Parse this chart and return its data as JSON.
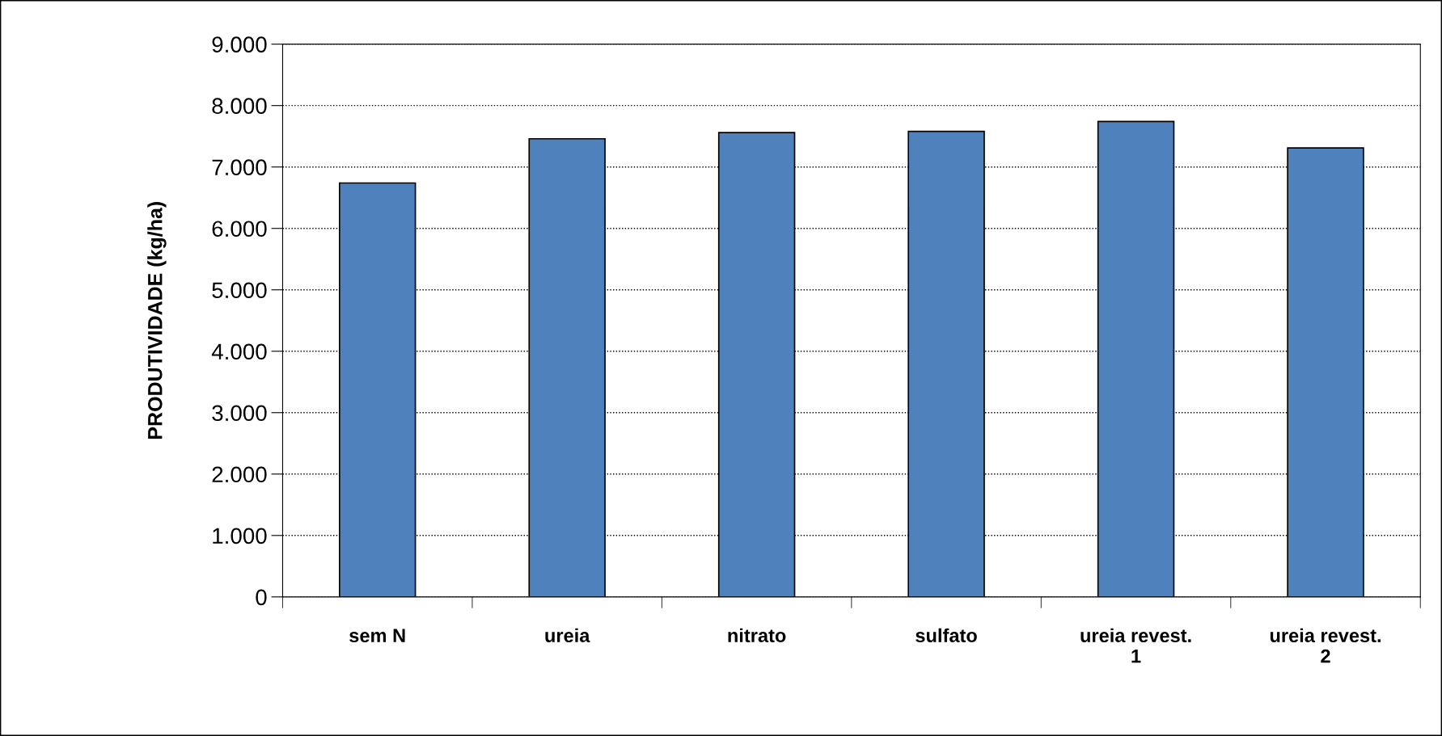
{
  "chart_data": {
    "type": "bar",
    "ylabel": "PRODUTIVIDADE (kg/ha)",
    "categories": [
      "sem N",
      "ureia",
      "nitrato",
      "sulfato",
      "ureia revest.\n1",
      "ureia revest.\n2"
    ],
    "values": [
      6740,
      7460,
      7560,
      7580,
      7740,
      7310
    ],
    "color": "#4f81bd",
    "ylim": [
      0,
      9000
    ],
    "yticks": [
      0,
      {
        "value": 1000,
        "label": "1.000"
      },
      {
        "value": 2000,
        "label": "2.000"
      },
      {
        "value": 3000,
        "label": "3.000"
      },
      {
        "value": 4000,
        "label": "4.000"
      },
      {
        "value": 5000,
        "label": "5.000"
      },
      {
        "value": 6000,
        "label": "6.000"
      },
      {
        "value": 7000,
        "label": "7.000"
      },
      {
        "value": 8000,
        "label": "8.000"
      },
      {
        "value": 9000,
        "label": "9.000"
      }
    ],
    "grid": "y",
    "legend": false
  }
}
